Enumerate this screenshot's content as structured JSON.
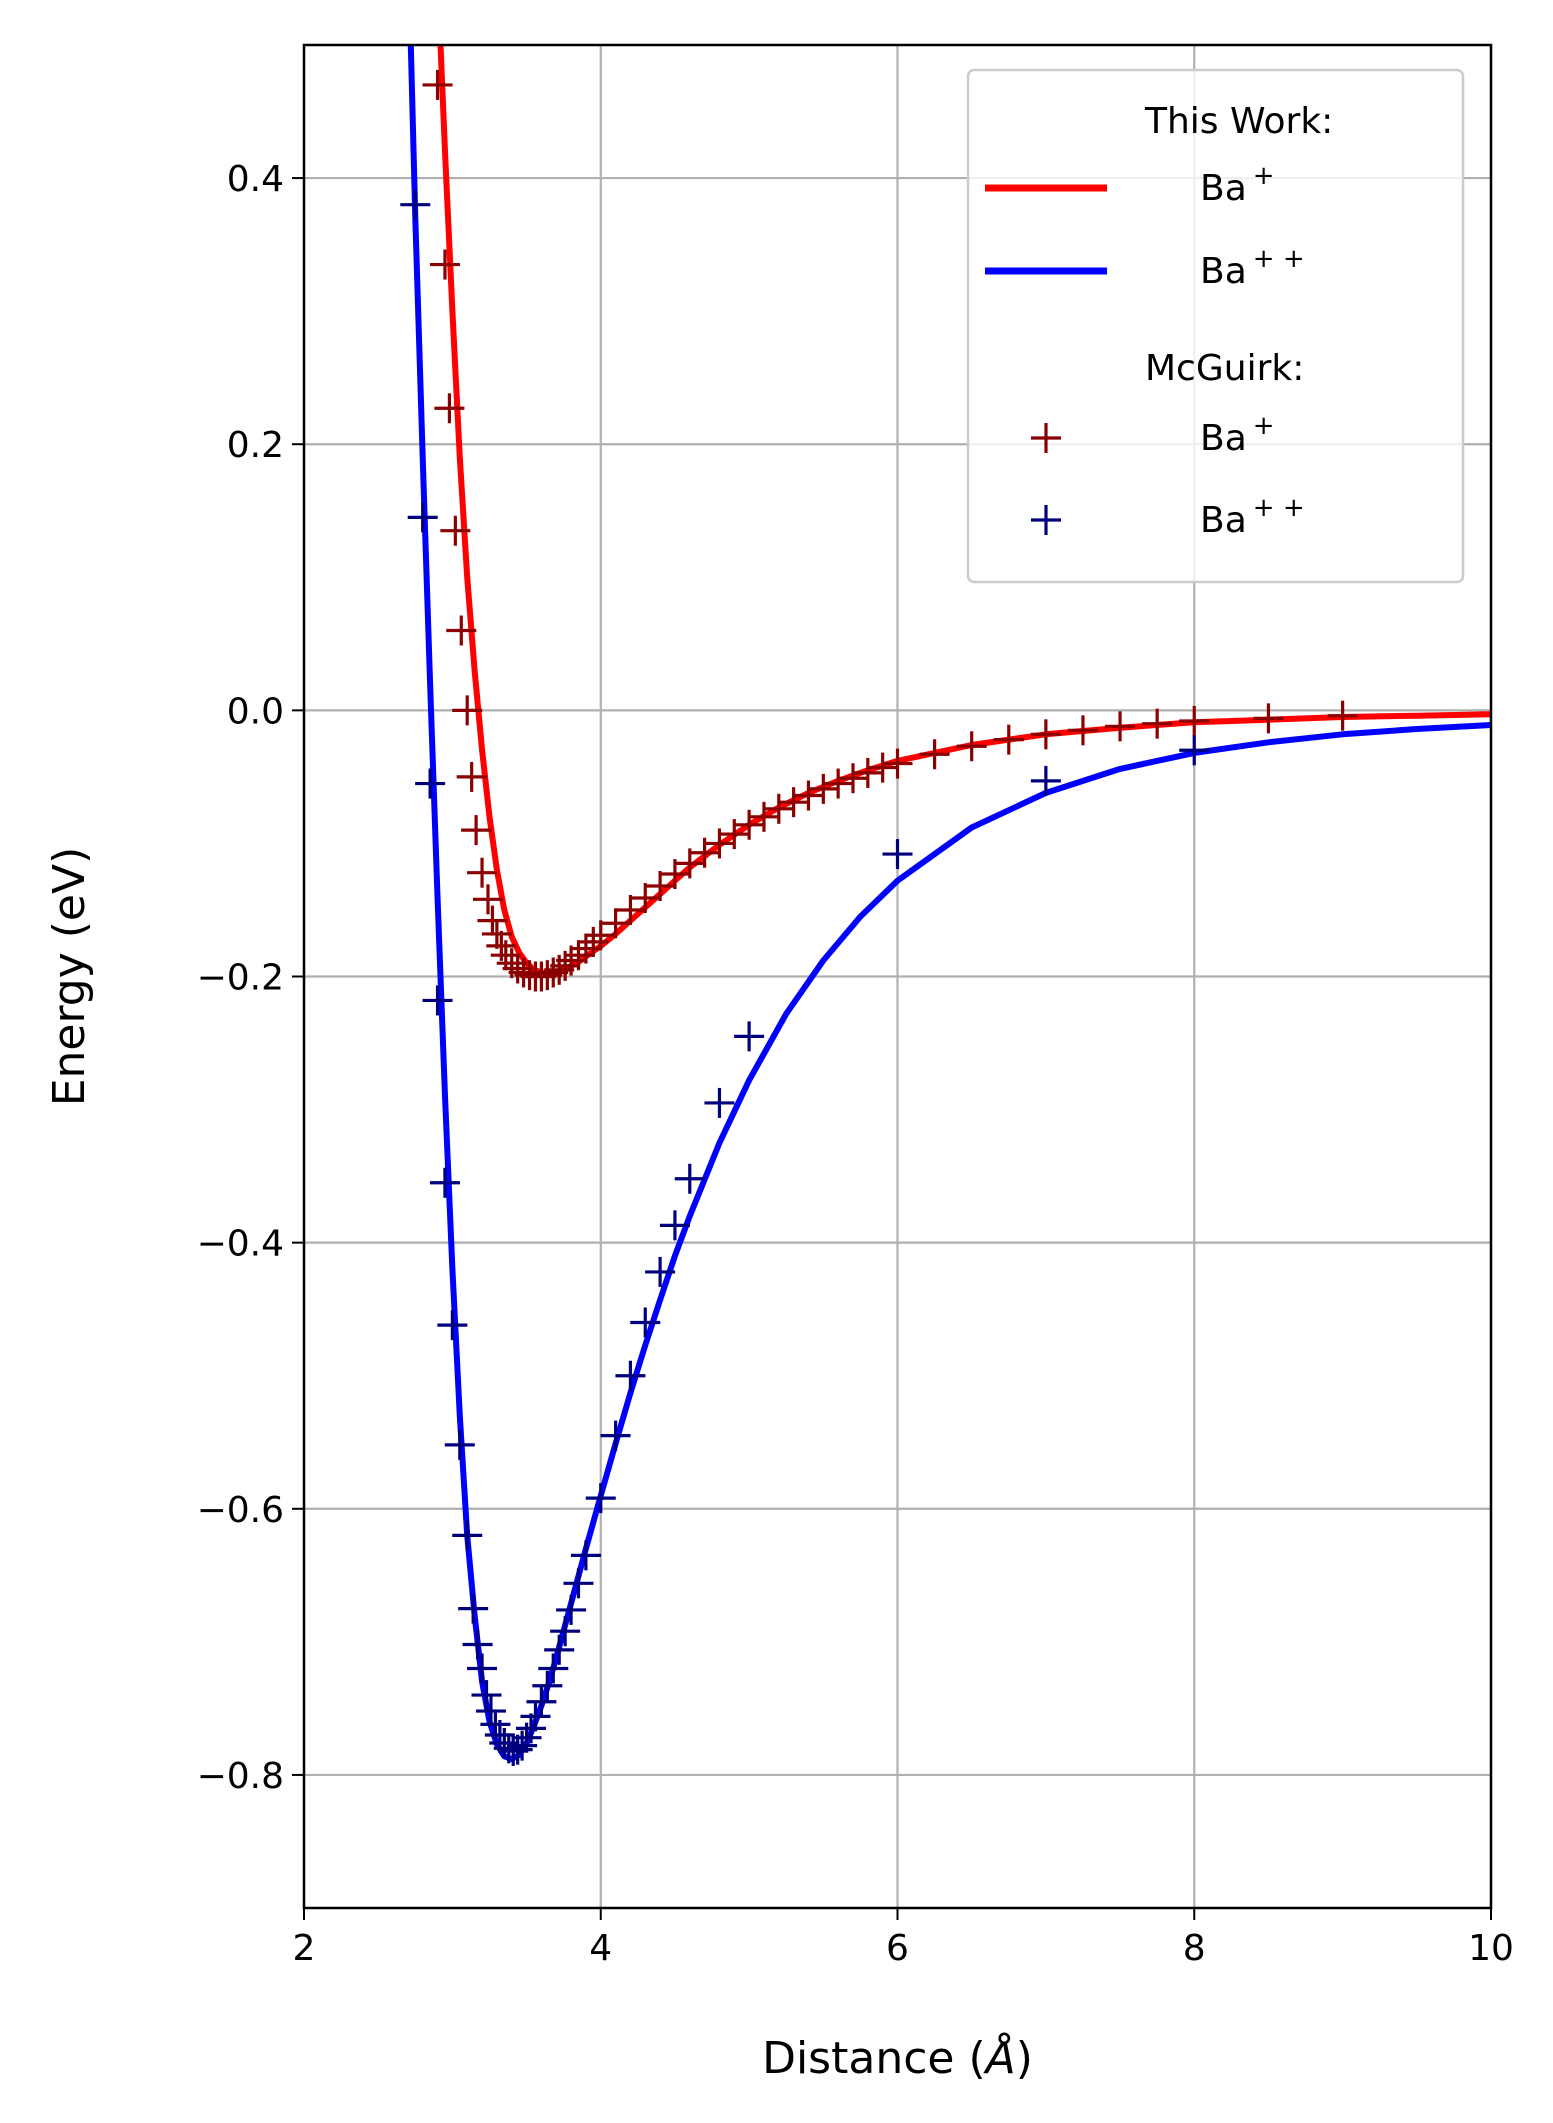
{
  "chart_data": {
    "type": "line",
    "title": "",
    "xlabel": "Distance",
    "xlabel_unit_symbol": "Å",
    "ylabel": "Energy (eV)",
    "xlim": [
      2,
      10
    ],
    "ylim": [
      -0.9,
      0.5
    ],
    "x_ticks": [
      2,
      4,
      6,
      8,
      10
    ],
    "x_tick_labels": [
      "2",
      "4",
      "6",
      "8",
      "10"
    ],
    "y_ticks": [
      0.4,
      0.2,
      0.0,
      -0.2,
      -0.4,
      -0.6,
      -0.8
    ],
    "y_tick_labels": [
      "0.4",
      "0.2",
      "0.0",
      "−0.2",
      "−0.4",
      "−0.6",
      "−0.8"
    ],
    "grid": true,
    "legend_position": "top-right",
    "legend": {
      "header_this_work": "This Work:",
      "header_mcguirk": "McGuirk:",
      "entries": [
        {
          "text": "Ba",
          "sup": "+",
          "color": "#ff0000",
          "style": "line"
        },
        {
          "text": "Ba",
          "sup": "+ +",
          "color": "#0000ff",
          "style": "line"
        },
        {
          "text": "Ba",
          "sup": "+",
          "color": "#8b0000",
          "style": "marker"
        },
        {
          "text": "Ba",
          "sup": "+ +",
          "color": "#00007f",
          "style": "marker"
        }
      ]
    },
    "series": [
      {
        "group": "This Work",
        "label": "Ba+",
        "style": "line",
        "color": "#ff0000",
        "x": [
          2.92,
          2.95,
          3.0,
          3.05,
          3.1,
          3.15,
          3.2,
          3.25,
          3.3,
          3.35,
          3.4,
          3.45,
          3.5,
          3.55,
          3.6,
          3.65,
          3.7,
          3.75,
          3.8,
          3.85,
          3.9,
          4.0,
          4.1,
          4.2,
          4.3,
          4.4,
          4.5,
          4.6,
          4.8,
          5.0,
          5.2,
          5.4,
          5.6,
          5.8,
          6.0,
          6.25,
          6.5,
          6.75,
          7.0,
          7.5,
          8.0,
          8.5,
          9.0,
          9.5,
          10.0
        ],
        "y": [
          0.5,
          0.42,
          0.3,
          0.19,
          0.1,
          0.03,
          -0.03,
          -0.08,
          -0.12,
          -0.15,
          -0.17,
          -0.182,
          -0.19,
          -0.195,
          -0.197,
          -0.198,
          -0.197,
          -0.195,
          -0.192,
          -0.189,
          -0.185,
          -0.177,
          -0.168,
          -0.158,
          -0.148,
          -0.138,
          -0.128,
          -0.118,
          -0.101,
          -0.086,
          -0.073,
          -0.062,
          -0.053,
          -0.045,
          -0.038,
          -0.032,
          -0.026,
          -0.022,
          -0.018,
          -0.013,
          -0.009,
          -0.007,
          -0.005,
          -0.004,
          -0.003
        ]
      },
      {
        "group": "This Work",
        "label": "Ba++",
        "style": "line",
        "color": "#0000ff",
        "x": [
          2.72,
          2.75,
          2.8,
          2.85,
          2.9,
          2.95,
          3.0,
          3.05,
          3.1,
          3.15,
          3.2,
          3.25,
          3.3,
          3.35,
          3.4,
          3.45,
          3.5,
          3.55,
          3.6,
          3.65,
          3.7,
          3.8,
          3.9,
          4.0,
          4.1,
          4.2,
          4.3,
          4.4,
          4.5,
          4.6,
          4.8,
          5.0,
          5.25,
          5.5,
          5.75,
          6.0,
          6.5,
          7.0,
          7.5,
          8.0,
          8.5,
          9.0,
          9.5,
          10.0
        ],
        "y": [
          0.5,
          0.37,
          0.19,
          0.02,
          -0.14,
          -0.29,
          -0.42,
          -0.53,
          -0.62,
          -0.68,
          -0.73,
          -0.76,
          -0.777,
          -0.786,
          -0.788,
          -0.785,
          -0.776,
          -0.763,
          -0.748,
          -0.731,
          -0.712,
          -0.671,
          -0.63,
          -0.59,
          -0.551,
          -0.513,
          -0.477,
          -0.443,
          -0.41,
          -0.38,
          -0.325,
          -0.278,
          -0.228,
          -0.188,
          -0.155,
          -0.128,
          -0.088,
          -0.062,
          -0.044,
          -0.032,
          -0.024,
          -0.018,
          -0.014,
          -0.011
        ]
      },
      {
        "group": "McGuirk",
        "label": "Ba+",
        "style": "marker",
        "color": "#8b0000",
        "x": [
          2.9,
          2.95,
          2.98,
          3.02,
          3.06,
          3.1,
          3.13,
          3.16,
          3.2,
          3.24,
          3.27,
          3.3,
          3.33,
          3.36,
          3.4,
          3.44,
          3.48,
          3.52,
          3.56,
          3.6,
          3.64,
          3.68,
          3.72,
          3.76,
          3.8,
          3.85,
          3.9,
          3.95,
          4.0,
          4.1,
          4.2,
          4.3,
          4.4,
          4.5,
          4.6,
          4.7,
          4.8,
          4.9,
          5.0,
          5.1,
          5.2,
          5.3,
          5.4,
          5.5,
          5.6,
          5.7,
          5.8,
          5.9,
          6.0,
          6.25,
          6.5,
          6.75,
          7.0,
          7.25,
          7.5,
          7.75,
          8.0,
          8.5,
          9.0
        ],
        "y": [
          0.47,
          0.335,
          0.227,
          0.135,
          0.06,
          0.0,
          -0.05,
          -0.09,
          -0.122,
          -0.142,
          -0.158,
          -0.168,
          -0.177,
          -0.184,
          -0.19,
          -0.194,
          -0.197,
          -0.199,
          -0.2,
          -0.2,
          -0.199,
          -0.197,
          -0.195,
          -0.192,
          -0.188,
          -0.184,
          -0.179,
          -0.174,
          -0.169,
          -0.16,
          -0.15,
          -0.141,
          -0.132,
          -0.123,
          -0.115,
          -0.107,
          -0.1,
          -0.093,
          -0.086,
          -0.08,
          -0.074,
          -0.069,
          -0.064,
          -0.059,
          -0.055,
          -0.051,
          -0.047,
          -0.043,
          -0.04,
          -0.033,
          -0.027,
          -0.022,
          -0.018,
          -0.015,
          -0.012,
          -0.01,
          -0.008,
          -0.006,
          -0.004
        ]
      },
      {
        "group": "McGuirk",
        "label": "Ba++",
        "style": "marker",
        "color": "#00007f",
        "x": [
          2.75,
          2.8,
          2.85,
          2.9,
          2.95,
          3.0,
          3.05,
          3.1,
          3.14,
          3.17,
          3.2,
          3.23,
          3.26,
          3.29,
          3.32,
          3.35,
          3.38,
          3.41,
          3.44,
          3.47,
          3.5,
          3.53,
          3.56,
          3.6,
          3.64,
          3.68,
          3.72,
          3.76,
          3.8,
          3.85,
          3.9,
          4.0,
          4.1,
          4.2,
          4.3,
          4.4,
          4.5,
          4.6,
          4.8,
          5.0,
          6.0,
          7.0,
          8.0
        ],
        "y": [
          0.38,
          0.145,
          -0.055,
          -0.218,
          -0.355,
          -0.462,
          -0.552,
          -0.62,
          -0.675,
          -0.702,
          -0.72,
          -0.74,
          -0.752,
          -0.762,
          -0.77,
          -0.776,
          -0.78,
          -0.782,
          -0.781,
          -0.778,
          -0.772,
          -0.765,
          -0.756,
          -0.745,
          -0.733,
          -0.72,
          -0.706,
          -0.692,
          -0.676,
          -0.656,
          -0.635,
          -0.592,
          -0.545,
          -0.5,
          -0.46,
          -0.422,
          -0.387,
          -0.352,
          -0.295,
          -0.245,
          -0.108,
          -0.053,
          -0.03
        ]
      }
    ]
  }
}
